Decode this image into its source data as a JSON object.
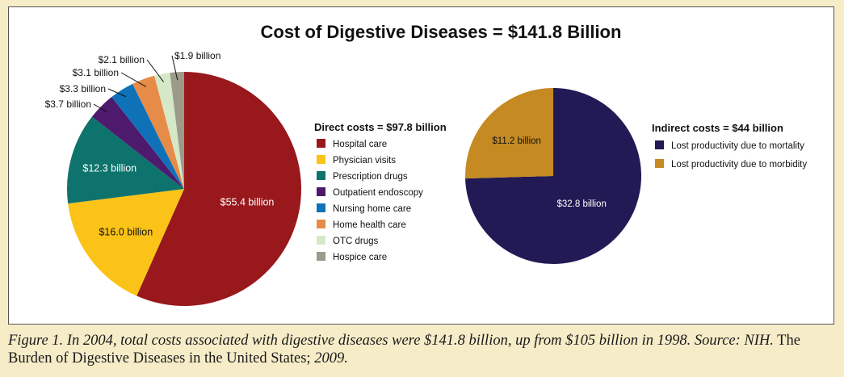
{
  "chart_data": [
    {
      "type": "pie",
      "title": "Cost of Digestive Diseases = $141.8 Billion",
      "legend_title": "Direct costs = $97.8 billion",
      "legend_position": "right",
      "slices": [
        {
          "name": "Hospital care",
          "value": 55.4,
          "label": "$55.4 billion",
          "color": "#98181c"
        },
        {
          "name": "Physician visits",
          "value": 16.0,
          "label": "$16.0 billion",
          "color": "#fbc317"
        },
        {
          "name": "Prescription drugs",
          "value": 12.3,
          "label": "$12.3 billion",
          "color": "#0e736c"
        },
        {
          "name": "Outpatient endoscopy",
          "value": 3.7,
          "label": "$3.7 billion",
          "color": "#4d1a6e"
        },
        {
          "name": "Nursing home care",
          "value": 3.3,
          "label": "$3.3 billion",
          "color": "#0f72b8"
        },
        {
          "name": "Home health care",
          "value": 3.1,
          "label": "$3.1 billion",
          "color": "#e78b48"
        },
        {
          "name": "OTC drugs",
          "value": 2.1,
          "label": "$2.1 billion",
          "color": "#d5e8c8"
        },
        {
          "name": "Hospice care",
          "value": 1.9,
          "label": "$1.9 billion",
          "color": "#9c9b8a"
        }
      ]
    },
    {
      "type": "pie",
      "legend_title": "Indirect costs = $44 billion",
      "legend_position": "right",
      "slices": [
        {
          "name": "Lost productivity due to mortality",
          "value": 32.8,
          "label": "$32.8 billion",
          "color": "#221a54"
        },
        {
          "name": "Lost productivity due to morbidity",
          "value": 11.2,
          "label": "$11.2 billion",
          "color": "#c58a22"
        }
      ]
    }
  ],
  "caption": {
    "italic": "Figure 1. In 2004, total costs associated with digestive diseases were $141.8 billion, up from $105 billion in 1998. Source: NIH.",
    "regular_1": " The Burden of Digestive Diseases in the United States; ",
    "italic_2": "2009."
  }
}
